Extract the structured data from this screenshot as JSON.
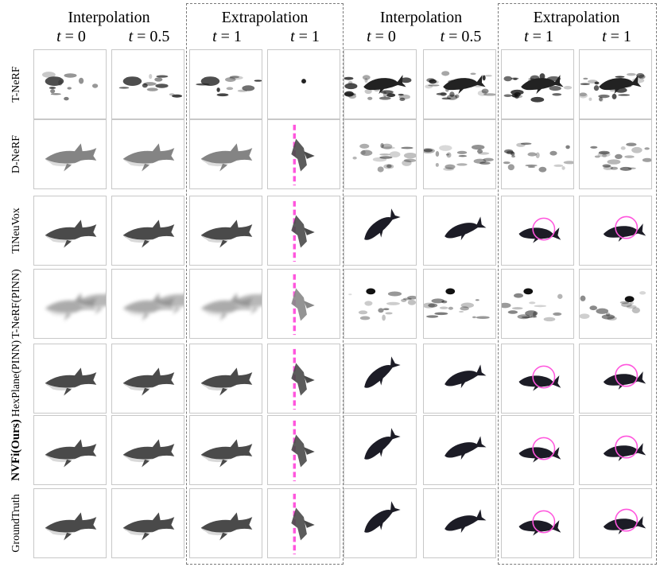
{
  "headers": {
    "groups": [
      "Interpolation",
      "Extrapolation",
      "Interpolation",
      "Extrapolation"
    ],
    "times": [
      "t = 0",
      "t = 0.5",
      "t = 1",
      "t = 1",
      "t = 0",
      "t = 0.5",
      "t = 1",
      "t = 1"
    ]
  },
  "rows": [
    {
      "label_lines": [
        "T-NeRF"
      ],
      "bold": false
    },
    {
      "label_lines": [
        "D-NeRF"
      ],
      "bold": false
    },
    {
      "label_lines": [
        "TiNeuVox"
      ],
      "bold": false
    },
    {
      "label_lines": [
        "T-NeRF",
        "(PINN)"
      ],
      "bold": false
    },
    {
      "label_lines": [
        "HexPlane",
        "(PINN)"
      ],
      "bold": false
    },
    {
      "label_lines": [
        "NVFi",
        "(Ours)"
      ],
      "bold": true
    },
    {
      "label_lines": [
        "Ground",
        "Truth"
      ],
      "bold": false
    }
  ],
  "colors": {
    "highlight": "#ff55dd",
    "dashed_box": "#7a7a7a",
    "shark": "#4a4a4a",
    "whale": "#1c1c26"
  },
  "content": {
    "shark_scenes": "shark renders (columns 1-4)",
    "whale_scenes": "whale renders (columns 5-8)"
  }
}
